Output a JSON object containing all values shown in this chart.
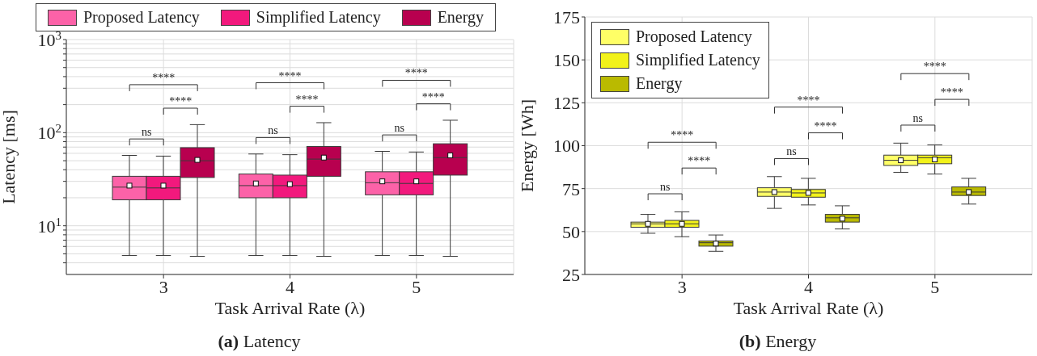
{
  "chart_data": [
    {
      "type": "box",
      "title": "(a) Latency",
      "xlabel": "Task Arrival Rate (λ)",
      "ylabel": "Latency [ms]",
      "categories": [
        "3",
        "4",
        "5"
      ],
      "log": true,
      "ylim": [
        3,
        1000
      ],
      "yticks": [
        {
          "value": 4,
          "label": null
        },
        {
          "value": 5,
          "label": null
        },
        {
          "value": 6,
          "label": null
        },
        {
          "value": 7,
          "label": null
        },
        {
          "value": 8,
          "label": null
        },
        {
          "value": 9,
          "label": null
        },
        {
          "value": 10,
          "label": "10$^{1}$"
        },
        {
          "value": 20,
          "label": null
        },
        {
          "value": 30,
          "label": null
        },
        {
          "value": 40,
          "label": null
        },
        {
          "value": 50,
          "label": null
        },
        {
          "value": 60,
          "label": null
        },
        {
          "value": 70,
          "label": null
        },
        {
          "value": 80,
          "label": null
        },
        {
          "value": 90,
          "label": null
        },
        {
          "value": 100,
          "label": "10$^{2}$"
        },
        {
          "value": 200,
          "label": null
        },
        {
          "value": 300,
          "label": null
        },
        {
          "value": 400,
          "label": null
        },
        {
          "value": 500,
          "label": null
        },
        {
          "value": 600,
          "label": null
        },
        {
          "value": 700,
          "label": null
        },
        {
          "value": 800,
          "label": null
        },
        {
          "value": 900,
          "label": null
        },
        {
          "value": 1000,
          "label": "10$^{3}$"
        }
      ],
      "grid": true,
      "legend": "top",
      "series": [
        {
          "name": "Proposed Latency",
          "color": "#fc62a8",
          "boxes": [
            {
              "low": 4.8,
              "q1": 19,
              "median": 26,
              "q3": 34,
              "high": 57,
              "mean": 27
            },
            {
              "low": 4.8,
              "q1": 20,
              "median": 27,
              "q3": 36,
              "high": 59,
              "mean": 28.5
            },
            {
              "low": 4.8,
              "q1": 21.5,
              "median": 29,
              "q3": 38,
              "high": 63,
              "mean": 30
            }
          ]
        },
        {
          "name": "Simplified Latency",
          "color": "#f2197d",
          "boxes": [
            {
              "low": 4.8,
              "q1": 19,
              "median": 25.5,
              "q3": 34,
              "high": 56,
              "mean": 27
            },
            {
              "low": 4.8,
              "q1": 20,
              "median": 27,
              "q3": 35,
              "high": 58,
              "mean": 28
            },
            {
              "low": 4.8,
              "q1": 21.5,
              "median": 28.5,
              "q3": 38,
              "high": 62,
              "mean": 30
            }
          ]
        },
        {
          "name": "Energy",
          "color": "#b8004f",
          "boxes": [
            {
              "low": 4.7,
              "q1": 33,
              "median": 50,
              "q3": 69,
              "high": 122,
              "mean": 51
            },
            {
              "low": 4.7,
              "q1": 34,
              "median": 52,
              "q3": 71,
              "high": 128,
              "mean": 54
            },
            {
              "low": 4.7,
              "q1": 35,
              "median": 54,
              "q3": 76,
              "high": 136,
              "mean": 57
            }
          ]
        }
      ],
      "annotations": [
        "ns",
        "****",
        "****",
        "ns",
        "****",
        "****",
        "ns",
        "****",
        "****"
      ]
    },
    {
      "type": "box",
      "title": "(b) Energy",
      "xlabel": "Task Arrival Rate (λ)",
      "ylabel": "Energy [Wh]",
      "categories": [
        "3",
        "4",
        "5"
      ],
      "ylim": [
        25,
        175
      ],
      "yticks": [
        25,
        50,
        75,
        100,
        125,
        150,
        175
      ],
      "grid": true,
      "legend": "top left",
      "series": [
        {
          "name": "Proposed Latency",
          "color": "#ffff66",
          "boxes": [
            {
              "low": 49,
              "q1": 52.5,
              "median": 54.5,
              "q3": 55.5,
              "high": 60,
              "mean": 54.5
            },
            {
              "low": 63.5,
              "q1": 70.5,
              "median": 73,
              "q3": 75.5,
              "high": 82,
              "mean": 73
            },
            {
              "low": 84.5,
              "q1": 88.5,
              "median": 91.5,
              "q3": 94.5,
              "high": 101.5,
              "mean": 91.5
            }
          ]
        },
        {
          "name": "Simplified Latency",
          "color": "#f2f21a",
          "boxes": [
            {
              "low": 47,
              "q1": 52.5,
              "median": 54.5,
              "q3": 56.5,
              "high": 61.5,
              "mean": 54.5
            },
            {
              "low": 65.5,
              "q1": 70,
              "median": 72.5,
              "q3": 74.5,
              "high": 81,
              "mean": 72.5
            },
            {
              "low": 83.5,
              "q1": 89.5,
              "median": 93,
              "q3": 94.5,
              "high": 100.5,
              "mean": 92
            }
          ]
        },
        {
          "name": "Energy",
          "color": "#baba00",
          "boxes": [
            {
              "low": 38.5,
              "q1": 41.5,
              "median": 43.5,
              "q3": 44.5,
              "high": 48,
              "mean": 43
            },
            {
              "low": 51.5,
              "q1": 55.5,
              "median": 58,
              "q3": 60,
              "high": 65,
              "mean": 57.5
            },
            {
              "low": 66,
              "q1": 71,
              "median": 73,
              "q3": 76,
              "high": 81,
              "mean": 73
            }
          ]
        }
      ],
      "annotations": [
        "ns",
        "****",
        "****",
        "ns",
        "****",
        "****",
        "ns",
        "****",
        "****"
      ]
    }
  ]
}
